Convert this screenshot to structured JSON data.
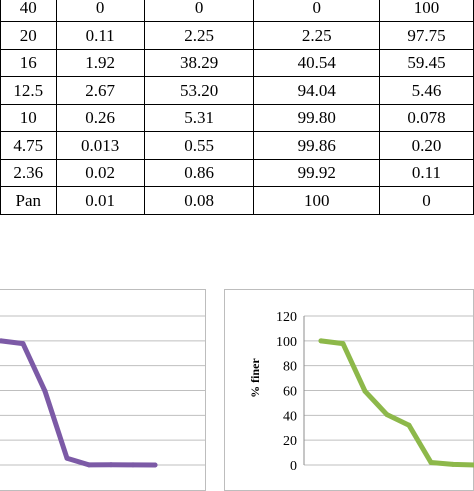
{
  "table": {
    "rows": [
      [
        "40",
        "0",
        "0",
        "0",
        "100"
      ],
      [
        "20",
        "0.11",
        "2.25",
        "2.25",
        "97.75"
      ],
      [
        "16",
        "1.92",
        "38.29",
        "40.54",
        "59.45"
      ],
      [
        "12.5",
        "2.67",
        "53.20",
        "94.04",
        "5.46"
      ],
      [
        "10",
        "0.26",
        "5.31",
        "99.80",
        "0.078"
      ],
      [
        "4.75",
        "0.013",
        "0.55",
        "99.86",
        "0.20"
      ],
      [
        "2.36",
        "0.02",
        "0.86",
        "99.92",
        "0.11"
      ],
      [
        "Pan",
        "0.01",
        "0.08",
        "100",
        "0"
      ]
    ]
  },
  "chart_data": [
    {
      "type": "line",
      "values": [
        100,
        97.75,
        59.45,
        5.46,
        0.078,
        0.2,
        0.11,
        0
      ],
      "ylim": [
        0,
        120
      ],
      "grid": true,
      "colors": {
        "line": "#7c5aa6",
        "grid": "#bfbfbf"
      }
    },
    {
      "type": "line",
      "values": [
        100,
        97.75,
        59.45,
        40.54,
        32.0,
        2.0,
        0.5,
        0
      ],
      "ylim": [
        0,
        120
      ],
      "yticks": [
        0,
        20,
        40,
        60,
        80,
        100,
        120
      ],
      "ylabel": "% finer",
      "grid": true,
      "colors": {
        "line": "#8db84a",
        "grid": "#bfbfbf"
      }
    }
  ]
}
